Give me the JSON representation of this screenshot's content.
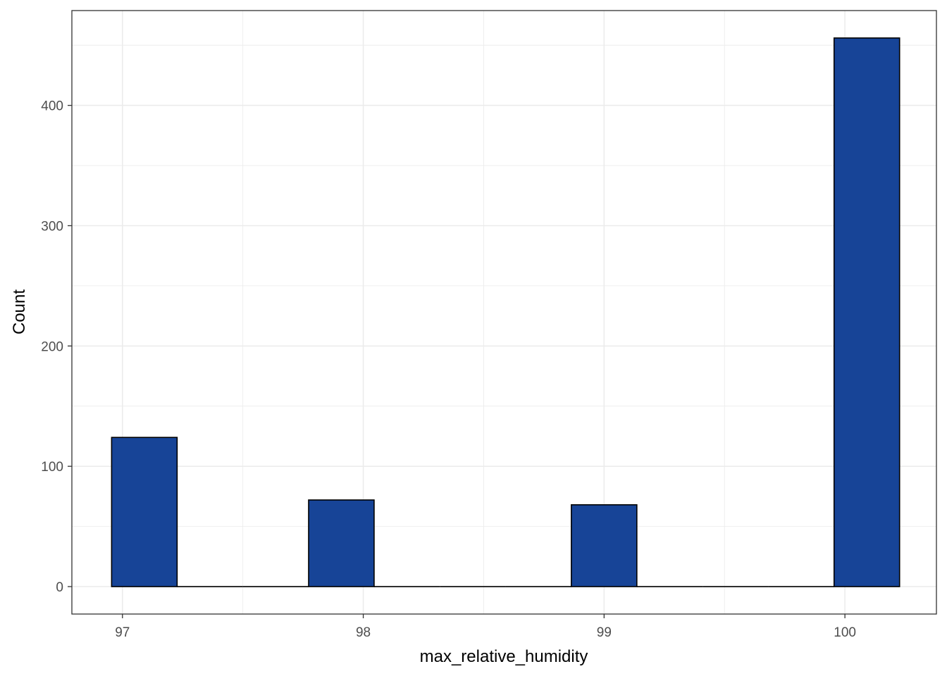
{
  "chart_data": {
    "type": "bar",
    "title": "",
    "xlabel": "max_relative_humidity",
    "ylabel": "Count",
    "bin_width": 0.2727,
    "bins": [
      {
        "start": 96.955,
        "end": 97.227,
        "count": 124
      },
      {
        "start": 97.227,
        "end": 97.5,
        "count": 0
      },
      {
        "start": 97.5,
        "end": 97.773,
        "count": 0
      },
      {
        "start": 97.773,
        "end": 98.045,
        "count": 72
      },
      {
        "start": 98.045,
        "end": 98.318,
        "count": 0
      },
      {
        "start": 98.318,
        "end": 98.591,
        "count": 0
      },
      {
        "start": 98.591,
        "end": 98.864,
        "count": 0
      },
      {
        "start": 98.864,
        "end": 99.136,
        "count": 68
      },
      {
        "start": 99.136,
        "end": 99.409,
        "count": 0
      },
      {
        "start": 99.409,
        "end": 99.682,
        "count": 0
      },
      {
        "start": 99.682,
        "end": 99.955,
        "count": 0
      },
      {
        "start": 99.955,
        "end": 100.227,
        "count": 456
      }
    ],
    "xlim": [
      96.79,
      100.38
    ],
    "ylim": [
      -22.8,
      478.8
    ],
    "x_ticks": [
      97,
      98,
      99,
      100
    ],
    "x_tick_labels": [
      "97",
      "98",
      "99",
      "100"
    ],
    "y_ticks": [
      0,
      100,
      200,
      300,
      400
    ],
    "y_tick_labels": [
      "0",
      "100",
      "200",
      "300",
      "400"
    ],
    "grid": true,
    "bar_fill": "#174497",
    "bar_outline": "#000000",
    "grid_color": "#ebebeb",
    "panel_border": "#333333"
  }
}
